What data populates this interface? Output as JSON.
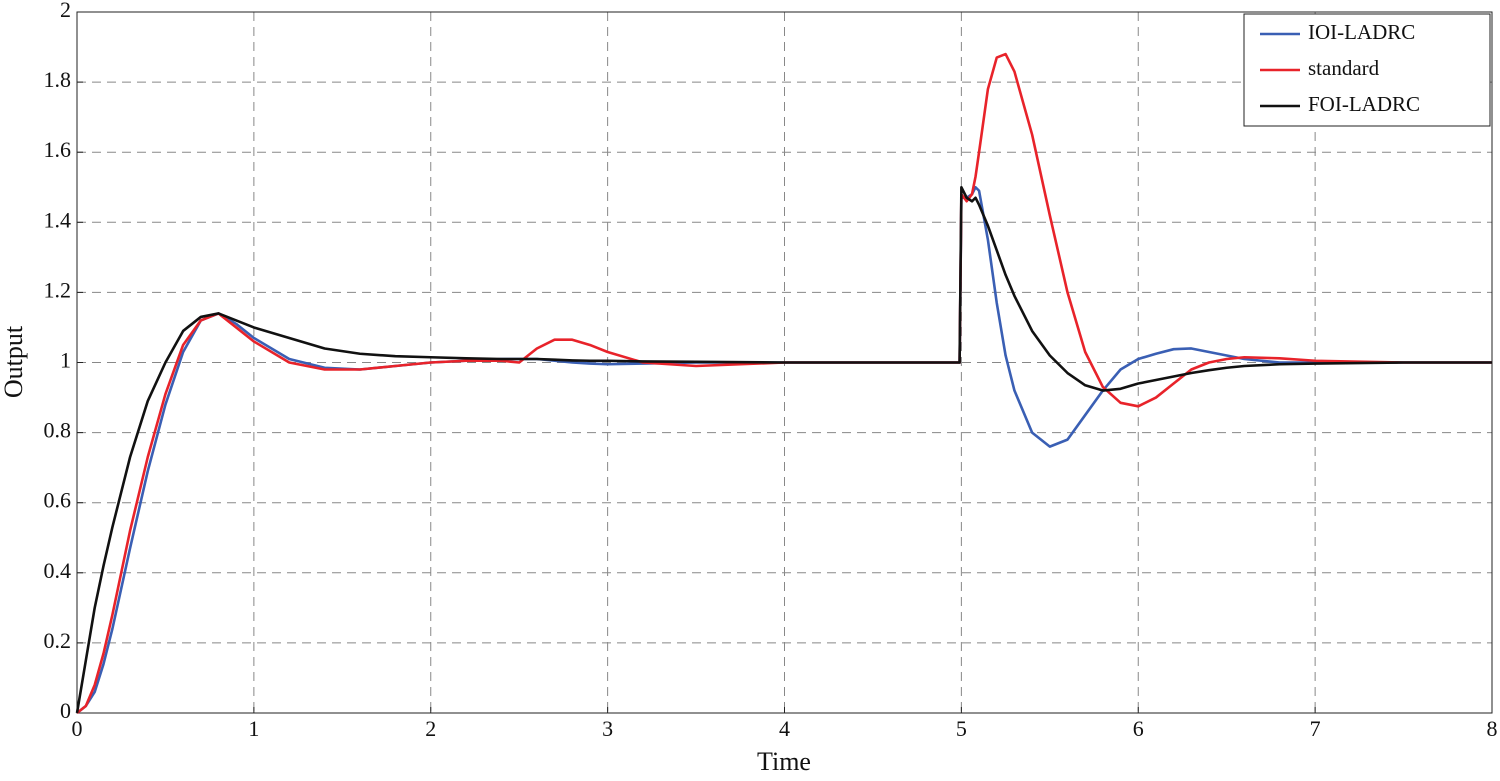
{
  "chart_data": {
    "type": "line",
    "xlabel": "Time",
    "ylabel": "Output",
    "xlim": [
      0,
      8
    ],
    "xticks": [
      0,
      1,
      2,
      3,
      4,
      5,
      6,
      7,
      8
    ],
    "ylim": [
      0,
      2
    ],
    "yticks": [
      0,
      0.2,
      0.4,
      0.6,
      0.8,
      1,
      1.2,
      1.4,
      1.6,
      1.8,
      2
    ],
    "grid": true,
    "legend": "upper-right",
    "x": [
      0,
      0.05,
      0.1,
      0.15,
      0.2,
      0.3,
      0.4,
      0.5,
      0.6,
      0.7,
      0.8,
      0.9,
      1.0,
      1.2,
      1.4,
      1.6,
      1.8,
      2.0,
      2.2,
      2.4,
      2.5,
      2.6,
      2.7,
      2.8,
      2.9,
      3.0,
      3.2,
      3.5,
      4.0,
      4.5,
      4.99,
      5.0,
      5.03,
      5.06,
      5.08,
      5.1,
      5.15,
      5.2,
      5.25,
      5.3,
      5.4,
      5.5,
      5.6,
      5.7,
      5.8,
      5.9,
      6.0,
      6.1,
      6.2,
      6.3,
      6.4,
      6.5,
      6.6,
      6.8,
      7.0,
      7.5,
      8.0
    ],
    "series": [
      {
        "name": "IOI-LADRC",
        "color": "#3a5fb4",
        "values": [
          0,
          0.02,
          0.06,
          0.14,
          0.24,
          0.47,
          0.69,
          0.88,
          1.03,
          1.12,
          1.14,
          1.11,
          1.07,
          1.01,
          0.985,
          0.98,
          0.99,
          1.0,
          1.005,
          1.01,
          1.01,
          1.01,
          1.005,
          1.0,
          0.997,
          0.995,
          0.997,
          1.0,
          1.0,
          1.0,
          1.0,
          1.47,
          1.47,
          1.48,
          1.5,
          1.49,
          1.35,
          1.17,
          1.02,
          0.92,
          0.8,
          0.76,
          0.78,
          0.85,
          0.92,
          0.98,
          1.01,
          1.025,
          1.038,
          1.04,
          1.03,
          1.02,
          1.01,
          1.0,
          1.0,
          1.0,
          1.0
        ]
      },
      {
        "name": "standard",
        "color": "#e8232a",
        "values": [
          0,
          0.02,
          0.08,
          0.17,
          0.28,
          0.52,
          0.73,
          0.91,
          1.05,
          1.12,
          1.14,
          1.1,
          1.06,
          1.0,
          0.98,
          0.98,
          0.99,
          1.0,
          1.005,
          1.005,
          1.0,
          1.04,
          1.065,
          1.065,
          1.05,
          1.03,
          1.0,
          0.99,
          1.0,
          1.0,
          1.0,
          1.48,
          1.46,
          1.48,
          1.53,
          1.6,
          1.78,
          1.87,
          1.88,
          1.83,
          1.65,
          1.42,
          1.2,
          1.03,
          0.93,
          0.885,
          0.875,
          0.9,
          0.94,
          0.98,
          1.0,
          1.01,
          1.015,
          1.012,
          1.005,
          1.0,
          1.0
        ]
      },
      {
        "name": "FOI-LADRC",
        "color": "#111111",
        "values": [
          0,
          0.15,
          0.3,
          0.42,
          0.53,
          0.73,
          0.89,
          1.0,
          1.09,
          1.13,
          1.14,
          1.12,
          1.1,
          1.07,
          1.04,
          1.025,
          1.018,
          1.015,
          1.012,
          1.01,
          1.01,
          1.01,
          1.008,
          1.006,
          1.005,
          1.005,
          1.003,
          1.002,
          1.0,
          1.0,
          1.0,
          1.5,
          1.47,
          1.46,
          1.47,
          1.45,
          1.39,
          1.32,
          1.25,
          1.19,
          1.09,
          1.02,
          0.97,
          0.935,
          0.92,
          0.925,
          0.94,
          0.95,
          0.96,
          0.97,
          0.978,
          0.985,
          0.99,
          0.995,
          0.997,
          1.0,
          1.0
        ]
      }
    ]
  }
}
